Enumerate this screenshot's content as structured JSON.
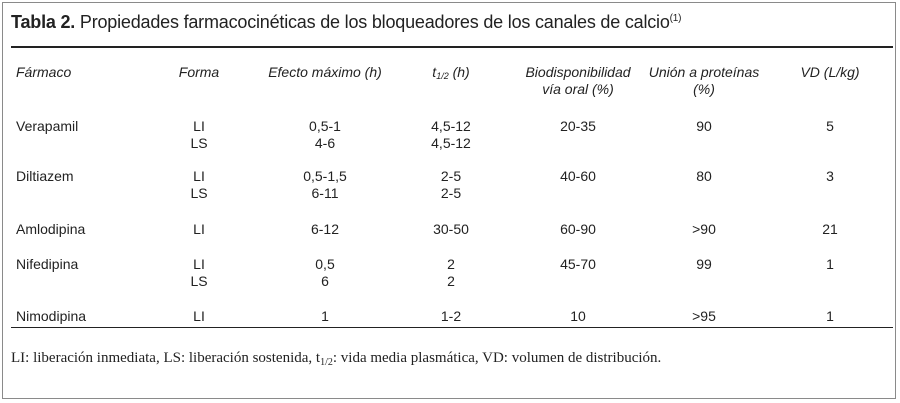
{
  "title": {
    "label": "Tabla 2.",
    "text": " Propiedades farmacocinéticas de los bloqueadores de los canales de calcio",
    "ref": "(1)"
  },
  "headers": {
    "farmaco": "Fármaco",
    "forma": "Forma",
    "efecto": "Efecto máximo (h)",
    "t_main": "t",
    "t_sub": "1/2",
    "t_rest": " (h)",
    "bio_line1": "Biodisponibilidad",
    "bio_line2": "vía oral (%)",
    "union_line1": "Unión a proteínas",
    "union_line2": "(%)",
    "vd": "VD (L/kg)"
  },
  "rows": [
    {
      "farmaco": "Verapamil",
      "forma": [
        "LI",
        "LS"
      ],
      "efecto": [
        "0,5-1",
        "4-6"
      ],
      "t": [
        "4,5-12",
        "4,5-12"
      ],
      "bio": "20-35",
      "union": "90",
      "vd": "5"
    },
    {
      "farmaco": "Diltiazem",
      "forma": [
        "LI",
        "LS"
      ],
      "efecto": [
        "0,5-1,5",
        "6-11"
      ],
      "t": [
        "2-5",
        "2-5"
      ],
      "bio": "40-60",
      "union": "80",
      "vd": "3"
    },
    {
      "farmaco": "Amlodipina",
      "forma": [
        "LI"
      ],
      "efecto": [
        "6-12"
      ],
      "t": [
        "30-50"
      ],
      "bio": "60-90",
      "union": ">90",
      "vd": "21"
    },
    {
      "farmaco": "Nifedipina",
      "forma": [
        "LI",
        "LS"
      ],
      "efecto": [
        "0,5",
        "6"
      ],
      "t": [
        "2",
        "2"
      ],
      "bio": "45-70",
      "union": "99",
      "vd": "1"
    },
    {
      "farmaco": "Nimodipina",
      "forma": [
        "LI"
      ],
      "efecto": [
        "1"
      ],
      "t": [
        "1-2"
      ],
      "bio": "10",
      "union": ">95",
      "vd": "1"
    }
  ],
  "footnote": {
    "part1": "LI: liberación inmediata, LS: liberación sostenida, t",
    "sub": "1/2",
    "part2": ": vida media plasmática, VD: volumen de distribución."
  }
}
